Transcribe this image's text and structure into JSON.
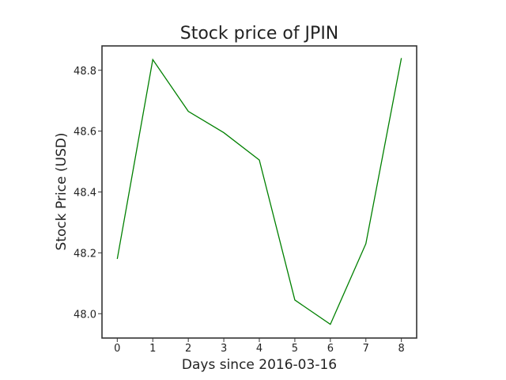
{
  "chart_data": {
    "type": "line",
    "title": "Stock price of JPIN",
    "xlabel": "Days since 2016-03-16",
    "ylabel": "Stock Price (USD)",
    "xlim": [
      -0.43,
      8.43
    ],
    "ylim": [
      47.92,
      48.88
    ],
    "xticks": [
      0,
      1,
      2,
      3,
      4,
      5,
      6,
      7,
      8
    ],
    "xtick_labels": [
      "0",
      "1",
      "2",
      "3",
      "4",
      "5",
      "6",
      "7",
      "8"
    ],
    "yticks": [
      48.0,
      48.2,
      48.4,
      48.6,
      48.8
    ],
    "ytick_labels": [
      "48.0",
      "48.2",
      "48.4",
      "48.6",
      "48.8"
    ],
    "grid": false,
    "legend": false,
    "series": [
      {
        "color": "#008000",
        "x": [
          0,
          1,
          2,
          3,
          4,
          5,
          6,
          7,
          8
        ],
        "y": [
          48.18,
          48.835,
          48.665,
          48.595,
          48.505,
          48.045,
          47.965,
          48.23,
          48.84
        ]
      }
    ]
  }
}
